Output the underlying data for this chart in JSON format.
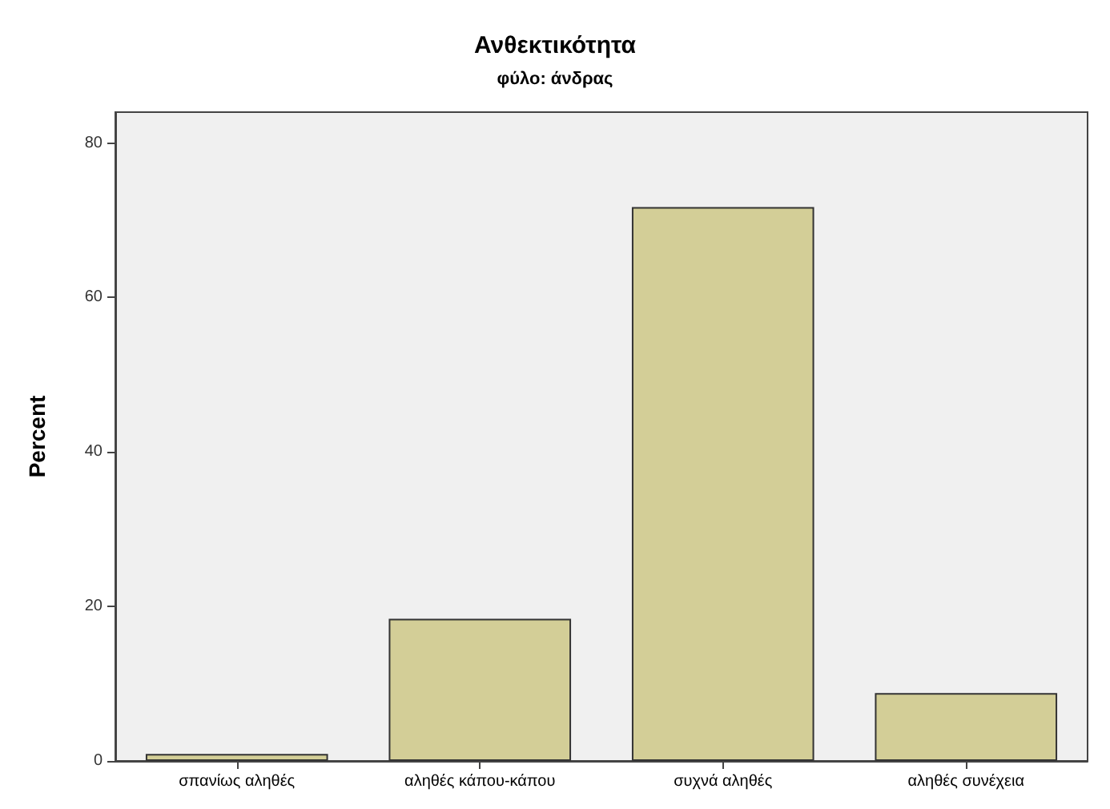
{
  "chart_data": {
    "type": "bar",
    "title": "Ανθεκτικότητα",
    "subtitle": "φύλο: άνδρας",
    "ylabel": "Percent",
    "categories": [
      "σπανίως αληθές",
      "αληθές κάπου-κάπου",
      "συχνά αληθές",
      "αληθές συνέχεια"
    ],
    "values": [
      0.9,
      18.4,
      71.7,
      8.8
    ],
    "color": "#d3ce97",
    "ylim": [
      0,
      84
    ],
    "yticks": [
      0,
      20,
      40,
      60,
      80
    ],
    "grid": false
  }
}
